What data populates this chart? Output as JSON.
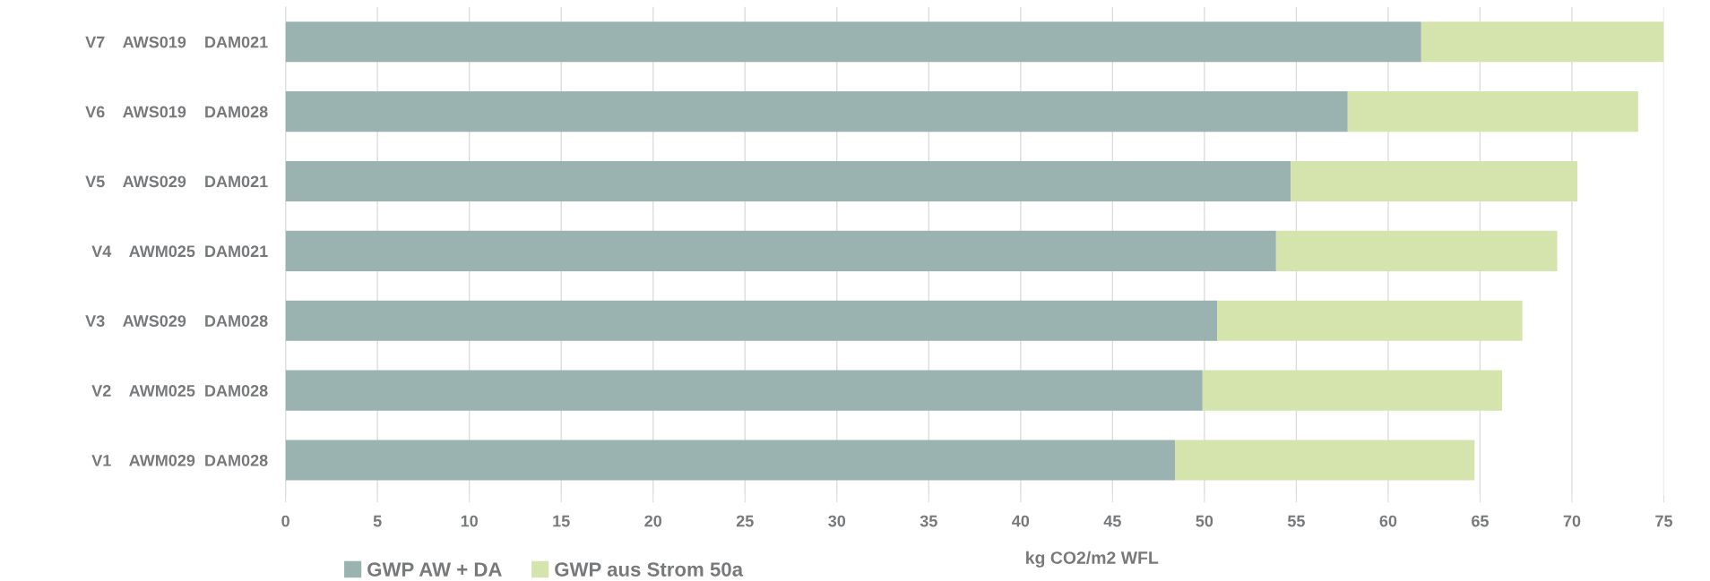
{
  "chart_data": {
    "type": "bar",
    "orientation": "horizontal",
    "stacked": true,
    "xlabel": "kg CO2/m2 WFL",
    "categories": [
      "V7    AWS019    DAM021",
      "V6    AWS019    DAM028",
      "V5    AWS029    DAM021",
      "V4    AWM025  DAM021",
      "V3    AWS029    DAM028",
      "V2    AWM025  DAM028",
      "V1    AWM029  DAM028"
    ],
    "series": [
      {
        "name": "GWP AW + DA",
        "color": "#9ab3b0",
        "values": [
          61.8,
          57.8,
          54.7,
          53.9,
          50.7,
          49.9,
          48.4
        ]
      },
      {
        "name": "GWP aus Strom 50a",
        "color": "#d5e3ad",
        "values": [
          13.2,
          15.8,
          15.6,
          15.3,
          16.6,
          16.3,
          16.3
        ]
      }
    ],
    "xlim": [
      0,
      75
    ],
    "xticks": [
      0,
      5,
      10,
      15,
      20,
      25,
      30,
      35,
      40,
      45,
      50,
      55,
      60,
      65,
      70,
      75
    ],
    "grid": "x",
    "legend": "bottom"
  }
}
